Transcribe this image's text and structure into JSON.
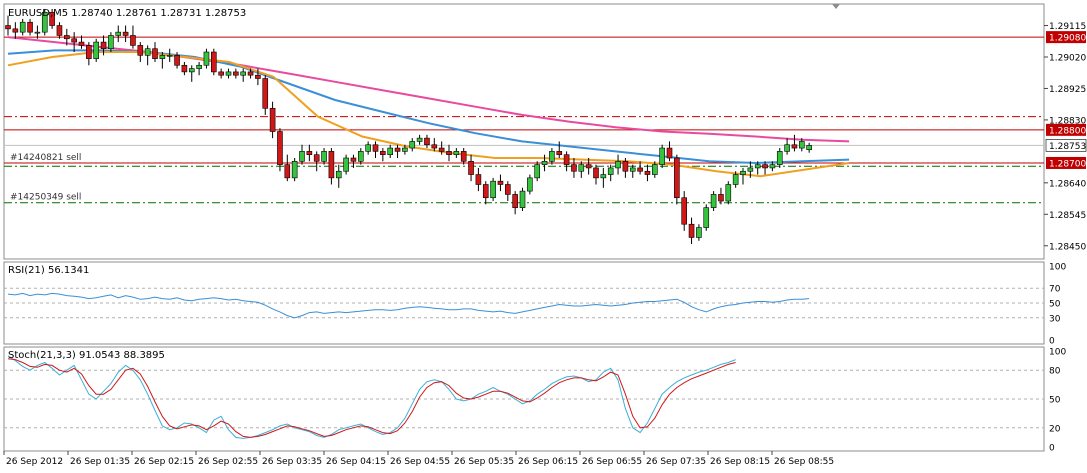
{
  "chart_data": {
    "type": "candlestick",
    "symbol_header": "EURUSD,M5  1.28740 1.28761 1.28731 1.28753",
    "price_axis": {
      "ylim": [
        1.2841,
        1.2918
      ],
      "ticks": [
        "1.29115",
        "1.29020",
        "1.28925",
        "1.28830",
        "1.28640",
        "1.28545",
        "1.28450"
      ]
    },
    "time_axis": {
      "labels": [
        "26 Sep 2012",
        "26 Sep 01:35",
        "26 Sep 02:15",
        "26 Sep 02:55",
        "26 Sep 03:35",
        "26 Sep 04:15",
        "26 Sep 04:55",
        "26 Sep 05:35",
        "26 Sep 06:15",
        "26 Sep 06:55",
        "26 Sep 07:35",
        "26 Sep 08:15",
        "26 Sep 08:55"
      ]
    },
    "horizontal_lines": [
      {
        "price": 1.2908,
        "label": "1.29080",
        "color": "#c00000",
        "style": "solid",
        "tag": ""
      },
      {
        "price": 1.2884,
        "label": "",
        "color": "#c00000",
        "style": "dashdot",
        "tag": ""
      },
      {
        "price": 1.288,
        "label": "1.28800",
        "color": "#c00000",
        "style": "solid",
        "tag": ""
      },
      {
        "price": 1.287,
        "label": "1.28700",
        "color": "#c00000",
        "style": "solid",
        "tag": "#14240821 sell"
      },
      {
        "price": 1.2869,
        "label": "",
        "color": "#007000",
        "style": "dashdot",
        "tag": ""
      },
      {
        "price": 1.2858,
        "label": "",
        "color": "#007000",
        "style": "dashdot",
        "tag": "#14250349 sell"
      }
    ],
    "current_price": {
      "value": 1.28753,
      "label": "1.28753"
    },
    "candles": [
      [
        1.29115,
        1.29145,
        1.29085,
        1.29105
      ],
      [
        1.29105,
        1.29125,
        1.29075,
        1.29095
      ],
      [
        1.29095,
        1.29135,
        1.29085,
        1.29125
      ],
      [
        1.29125,
        1.29135,
        1.29085,
        1.29095
      ],
      [
        1.29095,
        1.29115,
        1.29075,
        1.29095
      ],
      [
        1.29095,
        1.29165,
        1.29085,
        1.29155
      ],
      [
        1.29155,
        1.29165,
        1.29105,
        1.29115
      ],
      [
        1.29115,
        1.29125,
        1.29075,
        1.29085
      ],
      [
        1.29085,
        1.29105,
        1.29055,
        1.29075
      ],
      [
        1.29075,
        1.29095,
        1.29035,
        1.29065
      ],
      [
        1.29065,
        1.29085,
        1.29045,
        1.29055
      ],
      [
        1.29055,
        1.29065,
        1.28995,
        1.29015
      ],
      [
        1.29015,
        1.29075,
        1.29005,
        1.29065
      ],
      [
        1.29065,
        1.29085,
        1.29025,
        1.29045
      ],
      [
        1.29045,
        1.29095,
        1.29035,
        1.29085
      ],
      [
        1.29085,
        1.29115,
        1.29065,
        1.29095
      ],
      [
        1.29095,
        1.29115,
        1.29065,
        1.29085
      ],
      [
        1.29085,
        1.29115,
        1.29045,
        1.29055
      ],
      [
        1.29055,
        1.29065,
        1.29005,
        1.29025
      ],
      [
        1.29025,
        1.29055,
        1.28995,
        1.29045
      ],
      [
        1.29045,
        1.29065,
        1.29005,
        1.29015
      ],
      [
        1.29015,
        1.29035,
        1.28985,
        1.29025
      ],
      [
        1.29025,
        1.29045,
        1.29005,
        1.29025
      ],
      [
        1.29025,
        1.29035,
        1.28985,
        1.28995
      ],
      [
        1.28995,
        1.29005,
        1.28965,
        1.28975
      ],
      [
        1.28975,
        1.28995,
        1.28945,
        1.28985
      ],
      [
        1.28985,
        1.29005,
        1.28965,
        1.28995
      ],
      [
        1.28995,
        1.29045,
        1.28985,
        1.29035
      ],
      [
        1.29035,
        1.29045,
        1.28965,
        1.28975
      ],
      [
        1.28975,
        1.28985,
        1.28955,
        1.28965
      ],
      [
        1.28965,
        1.28985,
        1.28955,
        1.28975
      ],
      [
        1.28975,
        1.28985,
        1.28955,
        1.28965
      ],
      [
        1.28965,
        1.28985,
        1.28945,
        1.28975
      ],
      [
        1.28975,
        1.28985,
        1.28955,
        1.28965
      ],
      [
        1.28965,
        1.28985,
        1.28935,
        1.28955
      ],
      [
        1.28955,
        1.28965,
        1.28845,
        1.28865
      ],
      [
        1.28865,
        1.28885,
        1.28775,
        1.28795
      ],
      [
        1.28795,
        1.28805,
        1.28675,
        1.28695
      ],
      [
        1.28695,
        1.28725,
        1.28645,
        1.28655
      ],
      [
        1.28655,
        1.28715,
        1.28645,
        1.28705
      ],
      [
        1.28705,
        1.28755,
        1.28695,
        1.28735
      ],
      [
        1.28735,
        1.28755,
        1.28705,
        1.28725
      ],
      [
        1.28725,
        1.28735,
        1.28675,
        1.28705
      ],
      [
        1.28705,
        1.28745,
        1.28695,
        1.28735
      ],
      [
        1.28735,
        1.28745,
        1.28635,
        1.28655
      ],
      [
        1.28655,
        1.28695,
        1.28625,
        1.28675
      ],
      [
        1.28675,
        1.28725,
        1.28665,
        1.28715
      ],
      [
        1.28715,
        1.28725,
        1.28685,
        1.28705
      ],
      [
        1.28705,
        1.28745,
        1.28695,
        1.28735
      ],
      [
        1.28735,
        1.28765,
        1.28725,
        1.28755
      ],
      [
        1.28755,
        1.28765,
        1.28715,
        1.28735
      ],
      [
        1.28735,
        1.28745,
        1.28705,
        1.28725
      ],
      [
        1.28725,
        1.28755,
        1.28715,
        1.28745
      ],
      [
        1.28745,
        1.28755,
        1.28715,
        1.28735
      ],
      [
        1.28735,
        1.28755,
        1.28725,
        1.28745
      ],
      [
        1.28745,
        1.28775,
        1.28735,
        1.28765
      ],
      [
        1.28765,
        1.28785,
        1.28755,
        1.28775
      ],
      [
        1.28775,
        1.28785,
        1.28745,
        1.28755
      ],
      [
        1.28755,
        1.28775,
        1.28735,
        1.28745
      ],
      [
        1.28745,
        1.28765,
        1.28725,
        1.28735
      ],
      [
        1.28735,
        1.28755,
        1.28705,
        1.28725
      ],
      [
        1.28725,
        1.28745,
        1.28715,
        1.28735
      ],
      [
        1.28735,
        1.28745,
        1.28695,
        1.28705
      ],
      [
        1.28705,
        1.28725,
        1.28645,
        1.28665
      ],
      [
        1.28665,
        1.28685,
        1.28615,
        1.28635
      ],
      [
        1.28635,
        1.28645,
        1.28575,
        1.28595
      ],
      [
        1.28595,
        1.28655,
        1.28585,
        1.28645
      ],
      [
        1.28645,
        1.28665,
        1.28615,
        1.28635
      ],
      [
        1.28635,
        1.28645,
        1.28585,
        1.28605
      ],
      [
        1.28605,
        1.28615,
        1.28545,
        1.28565
      ],
      [
        1.28565,
        1.28625,
        1.28555,
        1.28615
      ],
      [
        1.28615,
        1.28665,
        1.28605,
        1.28655
      ],
      [
        1.28655,
        1.28705,
        1.28645,
        1.28695
      ],
      [
        1.28695,
        1.28725,
        1.28675,
        1.28705
      ],
      [
        1.28705,
        1.28745,
        1.28695,
        1.28735
      ],
      [
        1.28735,
        1.28765,
        1.28715,
        1.28725
      ],
      [
        1.28725,
        1.28735,
        1.28675,
        1.28695
      ],
      [
        1.28695,
        1.28715,
        1.28655,
        1.28675
      ],
      [
        1.28675,
        1.28705,
        1.28655,
        1.28695
      ],
      [
        1.28695,
        1.28715,
        1.28665,
        1.28685
      ],
      [
        1.28685,
        1.28695,
        1.28635,
        1.28655
      ],
      [
        1.28655,
        1.28685,
        1.28625,
        1.28665
      ],
      [
        1.28665,
        1.28695,
        1.28645,
        1.28685
      ],
      [
        1.28685,
        1.28725,
        1.28665,
        1.28705
      ],
      [
        1.28705,
        1.28715,
        1.28655,
        1.28675
      ],
      [
        1.28675,
        1.28695,
        1.28655,
        1.28685
      ],
      [
        1.28685,
        1.28705,
        1.28665,
        1.28675
      ],
      [
        1.28675,
        1.28695,
        1.28645,
        1.28665
      ],
      [
        1.28665,
        1.28705,
        1.28655,
        1.28695
      ],
      [
        1.28695,
        1.28755,
        1.28685,
        1.28745
      ],
      [
        1.28745,
        1.28765,
        1.28705,
        1.28715
      ],
      [
        1.28715,
        1.28725,
        1.28575,
        1.28595
      ],
      [
        1.28595,
        1.28615,
        1.28495,
        1.28515
      ],
      [
        1.28515,
        1.28535,
        1.28455,
        1.28475
      ],
      [
        1.28475,
        1.28515,
        1.28465,
        1.28505
      ],
      [
        1.28505,
        1.28575,
        1.28495,
        1.28565
      ],
      [
        1.28565,
        1.28615,
        1.28555,
        1.28605
      ],
      [
        1.28605,
        1.28625,
        1.28575,
        1.28585
      ],
      [
        1.28585,
        1.28645,
        1.28575,
        1.28635
      ],
      [
        1.28635,
        1.28675,
        1.28625,
        1.28665
      ],
      [
        1.28665,
        1.28685,
        1.28635,
        1.28675
      ],
      [
        1.28675,
        1.28705,
        1.28655,
        1.28685
      ],
      [
        1.28685,
        1.28705,
        1.28665,
        1.28695
      ],
      [
        1.28695,
        1.28705,
        1.28665,
        1.28685
      ],
      [
        1.28685,
        1.28705,
        1.28675,
        1.28695
      ],
      [
        1.28695,
        1.28745,
        1.28685,
        1.28735
      ],
      [
        1.28735,
        1.28775,
        1.28725,
        1.28755
      ],
      [
        1.28755,
        1.28785,
        1.28735,
        1.28745
      ],
      [
        1.28745,
        1.28775,
        1.28735,
        1.28765
      ],
      [
        1.2874,
        1.28761,
        1.28731,
        1.28753
      ]
    ],
    "moving_averages": [
      {
        "color": "#e84aa0",
        "values": [
          1.2908,
          1.29065,
          1.2905,
          1.29035,
          1.29015,
          1.28995,
          1.2897,
          1.28945,
          1.2892,
          1.28895,
          1.2887,
          1.28845,
          1.28825,
          1.28808,
          1.28795,
          1.28788,
          1.2878,
          1.2877,
          1.28765
        ]
      },
      {
        "color": "#3a8fd8",
        "values": [
          1.2903,
          1.2904,
          1.2904,
          1.29035,
          1.2902,
          1.2899,
          1.2894,
          1.2889,
          1.28855,
          1.2882,
          1.2879,
          1.28765,
          1.2875,
          1.28735,
          1.2872,
          1.28705,
          1.287,
          1.28705,
          1.2871
        ]
      },
      {
        "color": "#f0a020",
        "values": [
          1.28995,
          1.2902,
          1.29035,
          1.29035,
          1.2902,
          1.29005,
          1.2896,
          1.2884,
          1.2878,
          1.2875,
          1.2873,
          1.28715,
          1.28715,
          1.2871,
          1.28705,
          1.28695,
          1.28675,
          1.2866,
          1.2868,
          1.287
        ]
      }
    ],
    "rsi": {
      "label": "RSI(21) 56.1341",
      "ticks": [
        "100",
        "70",
        "50",
        "30",
        "0"
      ],
      "levels": [
        70,
        50,
        30
      ],
      "values": [
        62,
        61,
        63,
        60,
        62,
        61,
        63,
        62,
        60,
        59,
        58,
        56,
        57,
        59,
        61,
        57,
        60,
        58,
        55,
        56,
        58,
        56,
        55,
        57,
        54,
        53,
        55,
        56,
        57,
        56,
        54,
        55,
        53,
        52,
        51,
        47,
        42,
        38,
        33,
        30,
        33,
        37,
        38,
        36,
        37,
        38,
        37,
        38,
        39,
        40,
        41,
        41,
        40,
        41,
        43,
        44,
        45,
        44,
        43,
        42,
        41,
        41,
        42,
        42,
        40,
        39,
        38,
        39,
        37,
        36,
        38,
        40,
        42,
        44,
        46,
        48,
        47,
        46,
        46,
        47,
        48,
        47,
        46,
        47,
        48,
        50,
        51,
        52,
        52,
        53,
        54,
        55,
        51,
        45,
        41,
        38,
        42,
        45,
        47,
        48,
        50,
        51,
        52,
        52,
        51,
        52,
        54,
        55,
        55,
        56
      ]
    },
    "stoch": {
      "label": "Stoch(21,3,3) 91.0543 88.3895",
      "ticks": [
        "100",
        "80",
        "50",
        "20",
        "0"
      ],
      "levels": [
        80,
        50,
        20
      ],
      "main": [
        95,
        90,
        84,
        80,
        85,
        88,
        82,
        75,
        80,
        85,
        70,
        55,
        50,
        58,
        66,
        78,
        85,
        80,
        70,
        55,
        38,
        22,
        18,
        20,
        25,
        24,
        20,
        15,
        28,
        32,
        18,
        10,
        9,
        10,
        12,
        15,
        18,
        22,
        24,
        20,
        18,
        16,
        12,
        10,
        13,
        18,
        20,
        22,
        24,
        20,
        16,
        13,
        15,
        20,
        30,
        45,
        60,
        68,
        70,
        68,
        60,
        50,
        48,
        50,
        55,
        58,
        62,
        58,
        55,
        50,
        45,
        48,
        55,
        60,
        66,
        70,
        73,
        74,
        72,
        68,
        70,
        78,
        82,
        70,
        40,
        20,
        15,
        25,
        40,
        55,
        62,
        68,
        72,
        75,
        78,
        80,
        83,
        86,
        88,
        91
      ],
      "signal": [
        92,
        91,
        88,
        84,
        83,
        86,
        85,
        80,
        78,
        82,
        76,
        64,
        55,
        55,
        60,
        70,
        80,
        82,
        76,
        63,
        47,
        32,
        22,
        19,
        21,
        23,
        22,
        18,
        22,
        27,
        24,
        16,
        11,
        10,
        11,
        13,
        16,
        19,
        22,
        21,
        19,
        17,
        14,
        11,
        12,
        15,
        18,
        20,
        22,
        21,
        18,
        15,
        14,
        17,
        25,
        37,
        52,
        62,
        67,
        68,
        64,
        56,
        51,
        50,
        52,
        55,
        58,
        58,
        56,
        52,
        48,
        47,
        51,
        56,
        62,
        67,
        70,
        72,
        72,
        70,
        69,
        73,
        78,
        75,
        55,
        32,
        20,
        21,
        30,
        44,
        55,
        62,
        67,
        71,
        74,
        77,
        80,
        83,
        86,
        88
      ]
    }
  }
}
